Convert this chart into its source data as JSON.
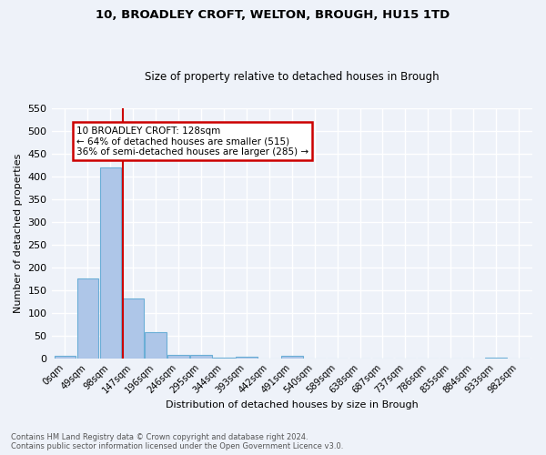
{
  "title1": "10, BROADLEY CROFT, WELTON, BROUGH, HU15 1TD",
  "title2": "Size of property relative to detached houses in Brough",
  "xlabel": "Distribution of detached houses by size in Brough",
  "ylabel": "Number of detached properties",
  "bar_labels": [
    "0sqm",
    "49sqm",
    "98sqm",
    "147sqm",
    "196sqm",
    "246sqm",
    "295sqm",
    "344sqm",
    "393sqm",
    "442sqm",
    "491sqm",
    "540sqm",
    "589sqm",
    "638sqm",
    "687sqm",
    "737sqm",
    "786sqm",
    "835sqm",
    "884sqm",
    "933sqm",
    "982sqm"
  ],
  "bar_values": [
    5,
    175,
    420,
    132,
    58,
    8,
    7,
    2,
    4,
    0,
    5,
    0,
    0,
    0,
    0,
    0,
    0,
    0,
    0,
    2,
    0
  ],
  "bar_color": "#aec6e8",
  "bar_edge_color": "#6baed6",
  "property_line_bin": 2.56,
  "ylim": [
    0,
    550
  ],
  "yticks": [
    0,
    50,
    100,
    150,
    200,
    250,
    300,
    350,
    400,
    450,
    500,
    550
  ],
  "annotation_text": "10 BROADLEY CROFT: 128sqm\n← 64% of detached houses are smaller (515)\n36% of semi-detached houses are larger (285) →",
  "annotation_box_color": "#ffffff",
  "annotation_border_color": "#cc0000",
  "footer_line1": "Contains HM Land Registry data © Crown copyright and database right 2024.",
  "footer_line2": "Contains public sector information licensed under the Open Government Licence v3.0.",
  "background_color": "#eef2f9",
  "grid_color": "#ffffff"
}
